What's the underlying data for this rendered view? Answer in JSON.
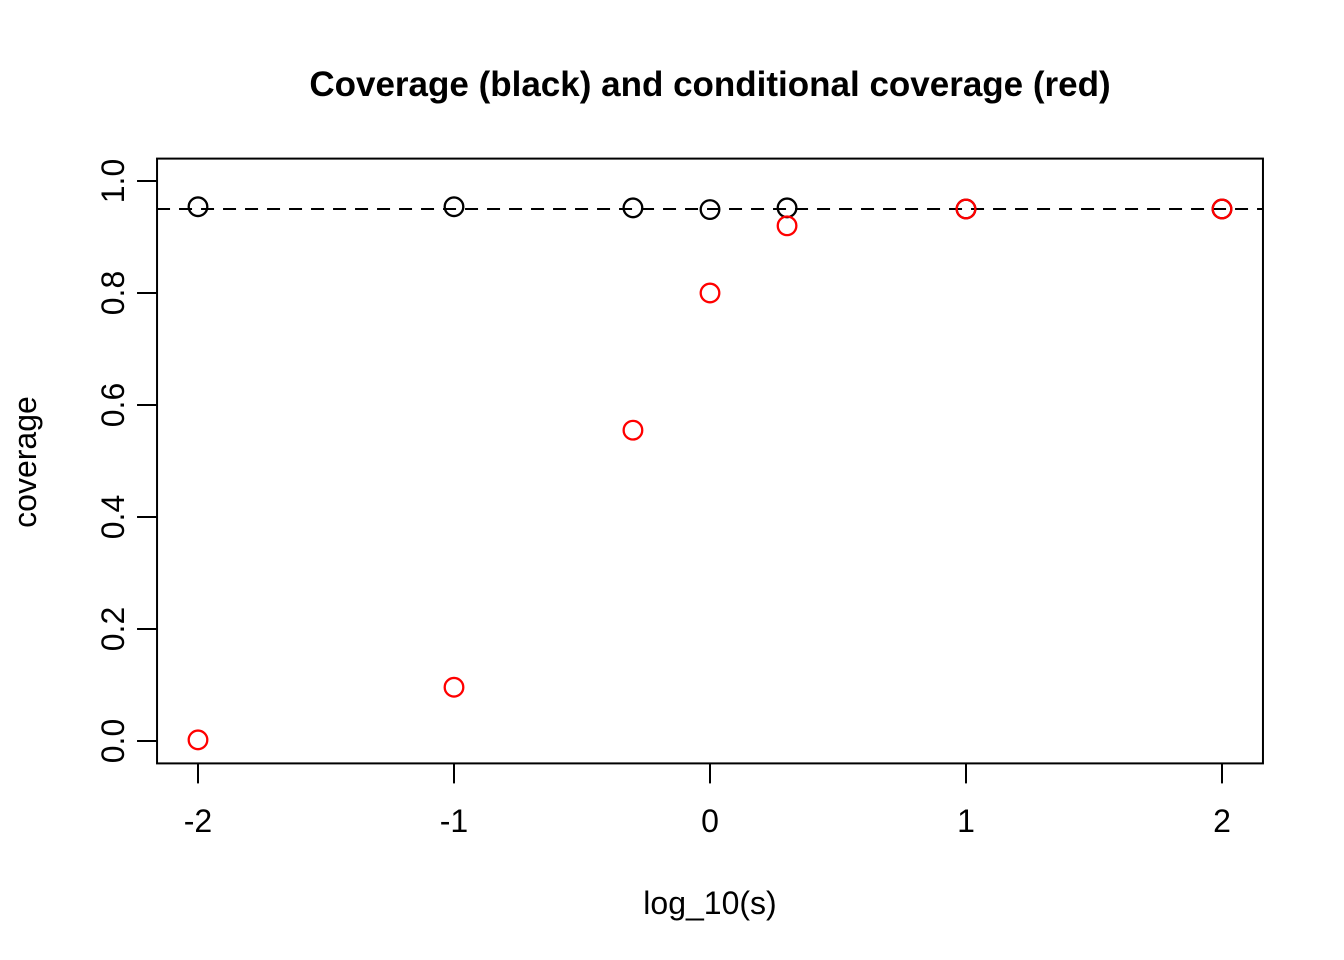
{
  "page": {
    "background_color": "#FFFFFF"
  },
  "chart_data": {
    "type": "scatter",
    "title": "Coverage (black) and conditional coverage (red)",
    "xlabel": "log_10(s)",
    "ylabel": "coverage",
    "x_tick_values": [
      -2,
      -1,
      0,
      1,
      2
    ],
    "x_tick_labels": [
      "-2",
      "-1",
      "0",
      "1",
      "2"
    ],
    "y_tick_values": [
      0.0,
      0.2,
      0.4,
      0.6,
      0.8,
      1.0
    ],
    "y_tick_labels": [
      "0.0",
      "0.2",
      "0.4",
      "0.6",
      "0.8",
      "1.0"
    ],
    "xlim": [
      -2.16,
      2.16
    ],
    "ylim": [
      -0.04,
      1.04
    ],
    "grid": false,
    "marker": "open-circle",
    "reference_line": {
      "y": 0.95,
      "style": "dashed",
      "color": "#000000"
    },
    "x": [
      -2,
      -1,
      -0.301,
      0,
      0.301,
      1,
      2
    ],
    "series": [
      {
        "name": "coverage",
        "color": "#000000",
        "values": [
          0.954,
          0.954,
          0.952,
          0.949,
          0.952,
          0.95,
          0.95
        ]
      },
      {
        "name": "conditional coverage",
        "color": "#FF0000",
        "values": [
          0.002,
          0.096,
          0.555,
          0.8,
          0.92,
          0.95,
          0.95
        ]
      }
    ]
  }
}
